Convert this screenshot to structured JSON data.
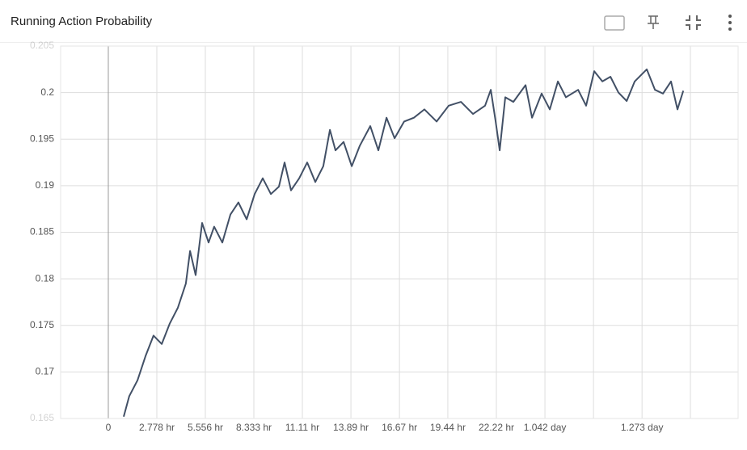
{
  "chart_data": {
    "type": "line",
    "title": "Running Action Probability",
    "x": [
      0.88,
      1.2,
      1.67,
      2.13,
      2.59,
      3.06,
      3.52,
      3.98,
      4.44,
      4.68,
      5.0,
      5.37,
      5.74,
      6.06,
      6.53,
      6.99,
      7.45,
      7.92,
      8.38,
      8.84,
      9.31,
      9.77,
      10.09,
      10.46,
      10.93,
      11.39,
      11.85,
      12.31,
      12.69,
      13.01,
      13.47,
      13.94,
      14.4,
      15.0,
      15.46,
      15.93,
      16.39,
      16.94,
      17.5,
      18.1,
      18.8,
      19.49,
      20.19,
      20.88,
      21.57,
      21.9,
      22.18,
      22.41,
      22.73,
      23.19,
      23.89,
      24.26,
      24.81,
      25.28,
      25.74,
      26.2,
      26.9,
      27.36,
      27.82,
      28.29,
      28.75,
      29.21,
      29.68,
      30.14,
      30.83,
      31.3,
      31.76,
      32.22,
      32.59,
      32.92
    ],
    "series": [
      {
        "color": "#425066",
        "values": [
          0.1652,
          0.1674,
          0.1691,
          0.1717,
          0.1739,
          0.173,
          0.1752,
          0.1769,
          0.1795,
          0.183,
          0.1804,
          0.186,
          0.1839,
          0.1856,
          0.1839,
          0.1869,
          0.1882,
          0.1864,
          0.1891,
          0.1908,
          0.1891,
          0.1899,
          0.1925,
          0.1895,
          0.1908,
          0.1925,
          0.1904,
          0.1921,
          0.196,
          0.1938,
          0.1947,
          0.1921,
          0.1943,
          0.1964,
          0.1938,
          0.1973,
          0.1951,
          0.1969,
          0.1973,
          0.1982,
          0.1969,
          0.1986,
          0.199,
          0.1977,
          0.1986,
          0.2003,
          0.1969,
          0.1938,
          0.1995,
          0.199,
          0.2008,
          0.1973,
          0.1999,
          0.1982,
          0.2012,
          0.1995,
          0.2003,
          0.1986,
          0.2023,
          0.2012,
          0.2017,
          0.2,
          0.1991,
          0.2012,
          0.2025,
          0.2003,
          0.1999,
          0.2012,
          0.1982,
          0.2002
        ]
      }
    ],
    "xlim": [
      -2.73,
      36.06
    ],
    "ylim": [
      0.165,
      0.205
    ],
    "xticks": [
      0,
      {
        "value": 2.778,
        "label": "2.778 hr"
      },
      {
        "value": 5.556,
        "label": "5.556 hr"
      },
      {
        "value": 8.333,
        "label": "8.333 hr"
      },
      {
        "value": 11.11,
        "label": "11.11 hr"
      },
      {
        "value": 13.89,
        "label": "13.89 hr"
      },
      {
        "value": 16.67,
        "label": "16.67 hr"
      },
      {
        "value": 19.44,
        "label": "19.44 hr"
      },
      {
        "value": 22.22,
        "label": "22.22 hr"
      },
      {
        "value": 25,
        "label": "1.042 day"
      },
      {
        "value": 27.78,
        "label": null
      },
      {
        "value": 30.56,
        "label": "1.273 day"
      },
      {
        "value": 33.33,
        "label": null
      }
    ],
    "yticks": [
      0.165,
      0.17,
      0.175,
      0.18,
      0.185,
      0.19,
      0.195,
      {
        "value": 0.2,
        "label": "0.2"
      },
      0.205
    ],
    "grid": true
  }
}
